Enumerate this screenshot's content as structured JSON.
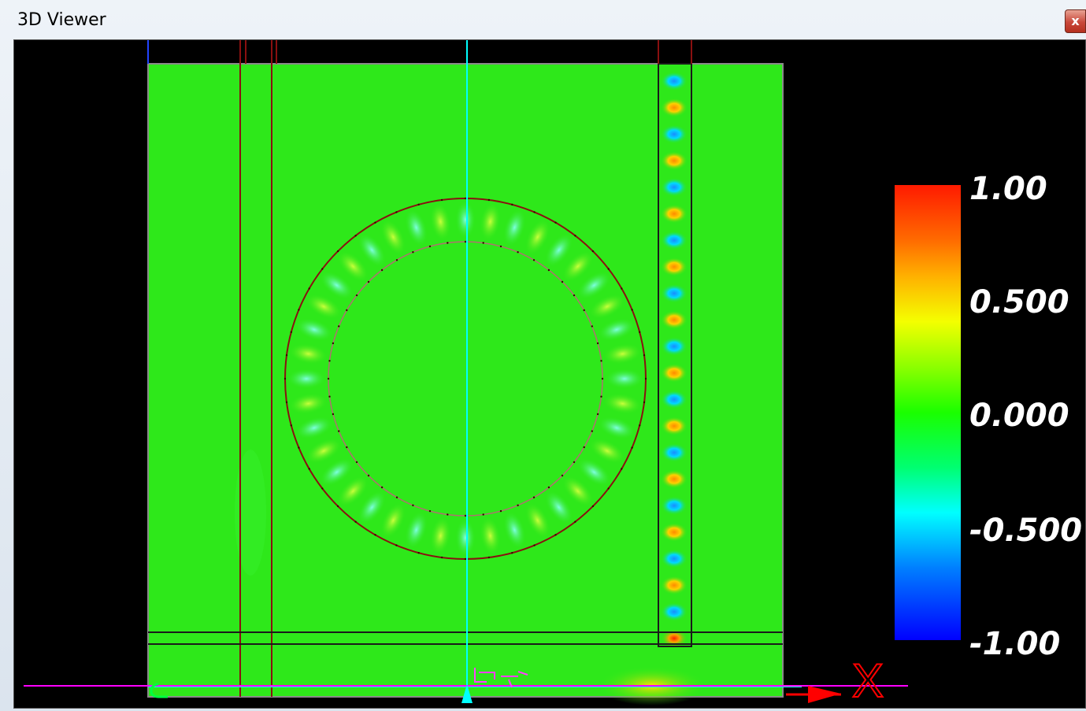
{
  "window": {
    "title": "3D Viewer",
    "close_label": "x"
  },
  "colorbar": {
    "labels": [
      "1.00",
      "0.500",
      "0.000",
      "-0.500",
      "-1.00"
    ],
    "colors": {
      "max": "#ff1a00",
      "mid_high": "#f4ff00",
      "zero": "#1aff00",
      "mid_low": "#00ffff",
      "min": "#0000ff"
    }
  },
  "axes": {
    "x_label": "X"
  },
  "colors": {
    "background": "#000000",
    "field_base": "#2ee81a",
    "structure_outline": "#8a1010",
    "z_axis": "#00ffff",
    "x_axis": "#ff00ff",
    "x_axis_arrow": "#ff0000"
  }
}
